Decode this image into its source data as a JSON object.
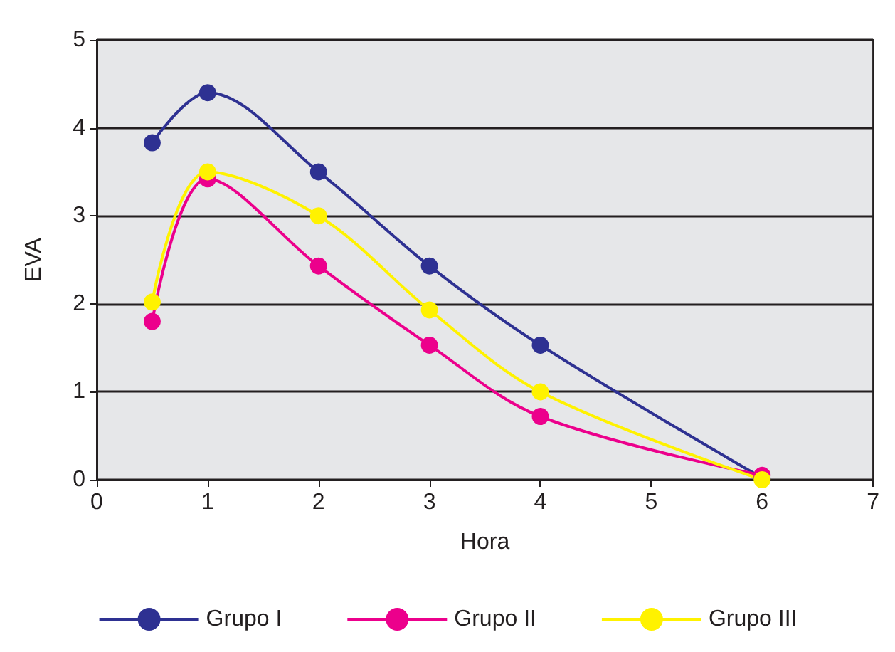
{
  "chart_data": {
    "type": "line",
    "xlabel": "Hora",
    "ylabel": "EVA",
    "xlim": [
      0,
      7
    ],
    "xticks": [
      0,
      1,
      2,
      3,
      4,
      5,
      6,
      7
    ],
    "ylim": [
      0,
      5
    ],
    "yticks": [
      0,
      1,
      2,
      3,
      4,
      5
    ],
    "grid": "y",
    "legend": "bottom",
    "marker": "circle",
    "line_style": "solid",
    "x": [
      0.5,
      1,
      2,
      3,
      4,
      6
    ],
    "series": [
      {
        "name": "Grupo I",
        "color": "#2e3192",
        "values": [
          3.83,
          4.4,
          3.5,
          2.43,
          1.53,
          0.02
        ]
      },
      {
        "name": "Grupo II",
        "color": "#ec008c",
        "values": [
          1.8,
          3.42,
          2.43,
          1.53,
          0.72,
          0.05
        ]
      },
      {
        "name": "Grupo III",
        "color": "#fff200",
        "values": [
          2.02,
          3.5,
          3.0,
          1.93,
          1.0,
          0
        ]
      }
    ]
  }
}
